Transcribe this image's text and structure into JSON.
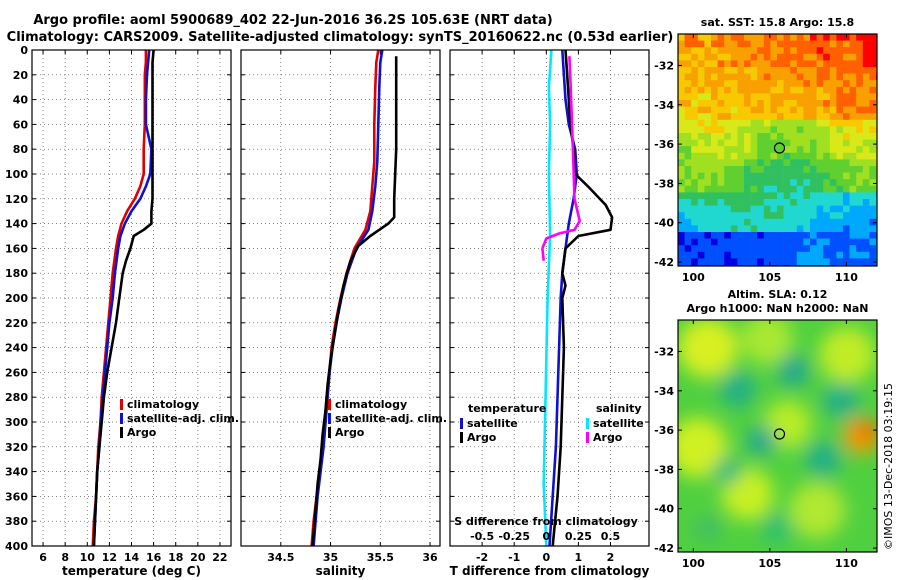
{
  "header": {
    "line1": "Argo profile: aoml 5900689_402 22-Jun-2016 36.2S 105.63E (NRT data)",
    "line2": "Climatology: CARS2009. Satellite-adjusted climatology: synTS_20160622.nc (0.53d earlier)"
  },
  "credit": "©IMOS 13-Dec-2018 03:19:15",
  "colors": {
    "climatology": "#e00000",
    "satellite_adj": "#1010d0",
    "argo": "#000000",
    "salinity_satellite": "#00e8ff",
    "salinity_argo": "#ff00ff"
  },
  "chart_data": [
    {
      "id": "temperature",
      "type": "line",
      "xlabel": "temperature (deg C)",
      "ylabel": "",
      "xlim": [
        5,
        23
      ],
      "ylim": [
        400,
        0
      ],
      "xticks": [
        6,
        8,
        10,
        12,
        14,
        16,
        18,
        20,
        22
      ],
      "yticks": [
        0,
        20,
        40,
        60,
        80,
        100,
        120,
        140,
        160,
        180,
        200,
        220,
        240,
        260,
        280,
        300,
        320,
        340,
        360,
        380,
        400
      ],
      "grid": true,
      "legend": [
        "climatology",
        "satellite-adj. clim.",
        "Argo"
      ],
      "legend_position": "bottom-right",
      "series": [
        {
          "name": "climatology",
          "color": "#e00000",
          "points": [
            [
              15.3,
              0
            ],
            [
              15.3,
              10
            ],
            [
              15.2,
              20
            ],
            [
              15.2,
              40
            ],
            [
              15.2,
              60
            ],
            [
              15.1,
              80
            ],
            [
              15.1,
              100
            ],
            [
              14.8,
              110
            ],
            [
              14.3,
              120
            ],
            [
              13.6,
              130
            ],
            [
              13.1,
              140
            ],
            [
              12.8,
              150
            ],
            [
              12.6,
              160
            ],
            [
              12.3,
              180
            ],
            [
              12.1,
              200
            ],
            [
              11.9,
              220
            ],
            [
              11.7,
              240
            ],
            [
              11.5,
              260
            ],
            [
              11.3,
              280
            ],
            [
              11.2,
              300
            ],
            [
              11.0,
              320
            ],
            [
              10.9,
              340
            ],
            [
              10.8,
              360
            ],
            [
              10.6,
              380
            ],
            [
              10.5,
              400
            ]
          ]
        },
        {
          "name": "satellite-adj. clim.",
          "color": "#1010d0",
          "points": [
            [
              15.6,
              0
            ],
            [
              15.5,
              10
            ],
            [
              15.4,
              20
            ],
            [
              15.3,
              40
            ],
            [
              15.3,
              60
            ],
            [
              15.8,
              80
            ],
            [
              15.7,
              100
            ],
            [
              15.3,
              110
            ],
            [
              14.8,
              120
            ],
            [
              14.0,
              130
            ],
            [
              13.4,
              140
            ],
            [
              13.0,
              150
            ],
            [
              12.8,
              160
            ],
            [
              12.5,
              180
            ],
            [
              12.3,
              200
            ],
            [
              12.0,
              220
            ],
            [
              11.8,
              240
            ],
            [
              11.6,
              260
            ],
            [
              11.4,
              280
            ],
            [
              11.2,
              300
            ],
            [
              11.1,
              320
            ],
            [
              10.9,
              340
            ],
            [
              10.8,
              360
            ],
            [
              10.7,
              380
            ],
            [
              10.6,
              400
            ]
          ]
        },
        {
          "name": "Argo",
          "color": "#000000",
          "points": [
            [
              16.0,
              0
            ],
            [
              15.9,
              10
            ],
            [
              15.9,
              20
            ],
            [
              15.9,
              40
            ],
            [
              15.9,
              60
            ],
            [
              15.9,
              80
            ],
            [
              15.9,
              100
            ],
            [
              15.9,
              120
            ],
            [
              15.8,
              130
            ],
            [
              15.8,
              140
            ],
            [
              15.1,
              145
            ],
            [
              14.2,
              150
            ],
            [
              13.9,
              160
            ],
            [
              13.5,
              170
            ],
            [
              13.2,
              180
            ],
            [
              12.9,
              200
            ],
            [
              12.6,
              220
            ],
            [
              12.2,
              240
            ],
            [
              11.8,
              260
            ],
            [
              11.5,
              280
            ],
            [
              11.3,
              300
            ],
            [
              11.1,
              320
            ],
            [
              10.9,
              340
            ],
            [
              10.8,
              360
            ],
            [
              10.7,
              380
            ],
            [
              10.6,
              400
            ]
          ]
        }
      ]
    },
    {
      "id": "salinity",
      "type": "line",
      "xlabel": "salinity",
      "ylabel": "",
      "xlim": [
        34.1,
        36.1
      ],
      "ylim": [
        400,
        0
      ],
      "xticks": [
        34.5,
        35,
        35.5,
        36
      ],
      "yticks": [
        0,
        20,
        40,
        60,
        80,
        100,
        120,
        140,
        160,
        180,
        200,
        220,
        240,
        260,
        280,
        300,
        320,
        340,
        360,
        380,
        400
      ],
      "grid": true,
      "legend": [
        "climatology",
        "satellite-adj. clim.",
        "Argo"
      ],
      "legend_position": "bottom-right",
      "series": [
        {
          "name": "climatology",
          "color": "#e00000",
          "points": [
            [
              35.48,
              0
            ],
            [
              35.46,
              10
            ],
            [
              35.45,
              30
            ],
            [
              35.44,
              60
            ],
            [
              35.44,
              90
            ],
            [
              35.42,
              110
            ],
            [
              35.4,
              130
            ],
            [
              35.35,
              145
            ],
            [
              35.24,
              160
            ],
            [
              35.16,
              180
            ],
            [
              35.1,
              200
            ],
            [
              35.05,
              220
            ],
            [
              35.01,
              240
            ],
            [
              34.99,
              260
            ],
            [
              34.96,
              280
            ],
            [
              34.94,
              300
            ],
            [
              34.92,
              320
            ],
            [
              34.89,
              340
            ],
            [
              34.86,
              360
            ],
            [
              34.83,
              380
            ],
            [
              34.81,
              400
            ]
          ]
        },
        {
          "name": "satellite-adj. clim.",
          "color": "#1010d0",
          "points": [
            [
              35.52,
              0
            ],
            [
              35.5,
              10
            ],
            [
              35.49,
              30
            ],
            [
              35.48,
              60
            ],
            [
              35.47,
              90
            ],
            [
              35.45,
              110
            ],
            [
              35.42,
              130
            ],
            [
              35.38,
              145
            ],
            [
              35.26,
              160
            ],
            [
              35.17,
              180
            ],
            [
              35.11,
              200
            ],
            [
              35.06,
              220
            ],
            [
              35.02,
              240
            ],
            [
              34.99,
              260
            ],
            [
              34.97,
              280
            ],
            [
              34.95,
              300
            ],
            [
              34.93,
              320
            ],
            [
              34.9,
              340
            ],
            [
              34.87,
              360
            ],
            [
              34.85,
              380
            ],
            [
              34.83,
              400
            ]
          ]
        },
        {
          "name": "Argo",
          "color": "#000000",
          "points": [
            [
              35.66,
              5
            ],
            [
              35.66,
              20
            ],
            [
              35.66,
              40
            ],
            [
              35.66,
              60
            ],
            [
              35.66,
              80
            ],
            [
              35.65,
              100
            ],
            [
              35.64,
              120
            ],
            [
              35.64,
              135
            ],
            [
              35.58,
              140
            ],
            [
              35.4,
              150
            ],
            [
              35.28,
              158
            ],
            [
              35.2,
              170
            ],
            [
              35.13,
              190
            ],
            [
              35.08,
              210
            ],
            [
              35.04,
              230
            ],
            [
              35.0,
              250
            ],
            [
              34.97,
              270
            ],
            [
              34.95,
              290
            ],
            [
              34.92,
              310
            ],
            [
              34.9,
              330
            ],
            [
              34.87,
              350
            ],
            [
              34.85,
              370
            ],
            [
              34.83,
              390
            ],
            [
              34.82,
              400
            ]
          ]
        }
      ]
    },
    {
      "id": "difference",
      "type": "line",
      "xlabel": "T difference from climatology",
      "xlabel_top": "S difference from climatology",
      "xlim": [
        -3,
        3.2
      ],
      "xlim_salinity": [
        -0.75,
        0.8
      ],
      "ylim": [
        400,
        0
      ],
      "xticks": [
        "-2",
        "-1",
        "0",
        "1",
        "2"
      ],
      "xtick_values": [
        -2,
        -1,
        0,
        1,
        2
      ],
      "xticks_salinity": [
        "-0.5",
        "-0.25",
        "0",
        "0.25",
        "0.5"
      ],
      "xtick_salinity_values": [
        -0.5,
        -0.25,
        0,
        0.25,
        0.5
      ],
      "grid": true,
      "legend_temperature": {
        "title": "temperature",
        "items": [
          "satellite",
          "Argo"
        ],
        "position": "bottom-left"
      },
      "legend_salinity": {
        "title": "salinity",
        "items": [
          "satellite",
          "Argo"
        ],
        "position": "bottom-right"
      },
      "series": [
        {
          "name": "temperature satellite",
          "color": "#1010d0",
          "points": [
            [
              0.5,
              0
            ],
            [
              0.55,
              20
            ],
            [
              0.6,
              40
            ],
            [
              0.7,
              60
            ],
            [
              0.9,
              80
            ],
            [
              0.95,
              100
            ],
            [
              0.85,
              120
            ],
            [
              0.7,
              140
            ],
            [
              0.6,
              160
            ],
            [
              0.5,
              180
            ],
            [
              0.45,
              200
            ],
            [
              0.4,
              240
            ],
            [
              0.35,
              280
            ],
            [
              0.3,
              320
            ],
            [
              0.2,
              360
            ],
            [
              0.1,
              400
            ]
          ]
        },
        {
          "name": "temperature Argo",
          "color": "#000000",
          "points": [
            [
              0.6,
              0
            ],
            [
              0.65,
              20
            ],
            [
              0.7,
              40
            ],
            [
              0.75,
              60
            ],
            [
              0.85,
              80
            ],
            [
              0.9,
              100
            ],
            [
              1.3,
              110
            ],
            [
              1.85,
              125
            ],
            [
              2.05,
              135
            ],
            [
              2.0,
              145
            ],
            [
              1.0,
              150
            ],
            [
              0.6,
              160
            ],
            [
              0.5,
              180
            ],
            [
              0.6,
              190
            ],
            [
              0.5,
              200
            ],
            [
              0.55,
              240
            ],
            [
              0.5,
              280
            ],
            [
              0.45,
              320
            ],
            [
              0.35,
              360
            ],
            [
              0.2,
              400
            ]
          ]
        },
        {
          "name": "salinity satellite",
          "color": "#00e8ff",
          "points": [
            [
              0.04,
              0
            ],
            [
              0.02,
              30
            ],
            [
              0.03,
              60
            ],
            [
              0.02,
              100
            ],
            [
              0.03,
              150
            ],
            [
              0.01,
              200
            ],
            [
              0.0,
              250
            ],
            [
              -0.01,
              300
            ],
            [
              -0.02,
              350
            ],
            [
              0.0,
              400
            ]
          ]
        },
        {
          "name": "salinity Argo",
          "color": "#ff00ff",
          "points": [
            [
              0.18,
              5
            ],
            [
              0.19,
              30
            ],
            [
              0.2,
              60
            ],
            [
              0.21,
              90
            ],
            [
              0.22,
              120
            ],
            [
              0.26,
              138
            ],
            [
              0.22,
              145
            ],
            [
              0.1,
              148
            ],
            [
              0.0,
              152
            ],
            [
              -0.03,
              160
            ],
            [
              -0.02,
              170
            ]
          ]
        }
      ]
    },
    {
      "id": "sst_map",
      "type": "heatmap",
      "title": "sat. SST: 15.8 Argo: 15.8",
      "xlim": [
        99,
        112
      ],
      "ylim": [
        -42.2,
        -30.4
      ],
      "xticks": [
        100,
        105,
        110
      ],
      "yticks": [
        -32,
        -34,
        -36,
        -38,
        -40,
        -42
      ],
      "argo_position": [
        105.63,
        -36.2
      ]
    },
    {
      "id": "sla_map",
      "type": "heatmap",
      "title": "Altim. SLA: 0.12",
      "subtitle": "Argo h1000: NaN h2000: NaN",
      "xlim": [
        99,
        112
      ],
      "ylim": [
        -42.2,
        -30.4
      ],
      "xticks": [
        100,
        105,
        110
      ],
      "yticks": [
        -32,
        -34,
        -36,
        -38,
        -40,
        -42
      ],
      "argo_position": [
        105.63,
        -36.2
      ]
    }
  ]
}
